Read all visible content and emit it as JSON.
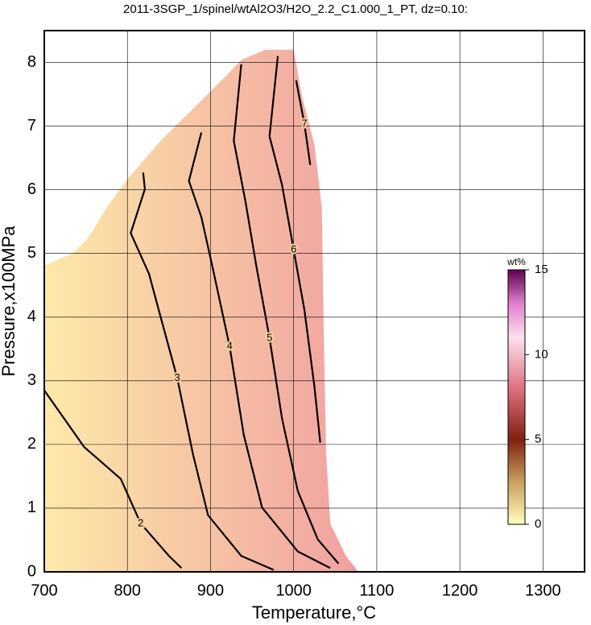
{
  "chart_data": {
    "type": "contour",
    "title": "2011-3SGP_1/spinel/wtAl2O3/H2O_2.2_C1.000_1_PT, dz=0.10:",
    "x_label": "Temperature,°C",
    "y_label": "Pressure,x100MPa",
    "xlim": [
      700,
      1350
    ],
    "ylim": [
      0,
      8.5
    ],
    "xticks": [
      700,
      800,
      900,
      1000,
      1100,
      1200,
      1300
    ],
    "yticks": [
      0,
      1,
      2,
      3,
      4,
      5,
      6,
      7,
      8
    ],
    "grid": true,
    "region": {
      "fill_colors": [
        "#fde9a8",
        "#f0a0a0"
      ],
      "x": [
        700,
        700,
        734,
        753,
        777,
        802,
        840,
        884,
        918,
        937,
        966,
        1000,
        1010,
        1025,
        1034,
        1036,
        1039,
        1044,
        1063,
        1078
      ],
      "y": [
        0,
        4.81,
        5.0,
        5.25,
        5.76,
        6.2,
        6.77,
        7.34,
        7.78,
        8.04,
        8.2,
        8.2,
        7.47,
        6.71,
        5.7,
        3.92,
        1.9,
        0.76,
        0.25,
        0
      ]
    },
    "contours": [
      {
        "level": 2,
        "x": [
          700,
          748,
          792,
          816,
          850,
          865
        ],
        "y": [
          2.85,
          1.96,
          1.46,
          0.76,
          0.25,
          0.06
        ]
      },
      {
        "level": 3,
        "x": [
          819,
          821,
          804,
          826,
          839,
          860,
          879,
          897,
          937,
          976
        ],
        "y": [
          6.27,
          6.01,
          5.32,
          4.68,
          4.05,
          3.04,
          1.84,
          0.89,
          0.25,
          0.03
        ]
      },
      {
        "level": 4,
        "x": [
          889,
          874,
          889,
          903,
          923,
          940,
          962,
          1005,
          1044
        ],
        "y": [
          6.9,
          6.14,
          5.57,
          4.75,
          3.54,
          2.15,
          1.01,
          0.32,
          0.06
        ]
      },
      {
        "level": 5,
        "x": [
          937,
          928,
          942,
          955,
          971,
          986,
          1005,
          1029,
          1054
        ],
        "y": [
          7.97,
          6.77,
          5.82,
          4.81,
          3.67,
          2.41,
          1.27,
          0.51,
          0.13
        ]
      },
      {
        "level": 6,
        "x": [
          981,
          971,
          986,
          1000,
          1013,
          1025,
          1032
        ],
        "y": [
          8.1,
          6.84,
          6.08,
          5.06,
          4.11,
          2.91,
          2.03
        ]
      },
      {
        "level": 7,
        "x": [
          1003,
          1013,
          1020
        ],
        "y": [
          7.72,
          7.03,
          6.39
        ]
      }
    ],
    "colorbar": {
      "label": "wt%",
      "zlim": [
        0,
        15
      ],
      "ticks": [
        0,
        5,
        10,
        15
      ],
      "colorscale": [
        {
          "value": 0,
          "color": "#ffffc0"
        },
        {
          "value": 2.5,
          "color": "#c8a060"
        },
        {
          "value": 5,
          "color": "#802010"
        },
        {
          "value": 8,
          "color": "#e07080"
        },
        {
          "value": 11,
          "color": "#fce0ec"
        },
        {
          "value": 13,
          "color": "#e080d0"
        },
        {
          "value": 15,
          "color": "#600050"
        }
      ]
    }
  }
}
